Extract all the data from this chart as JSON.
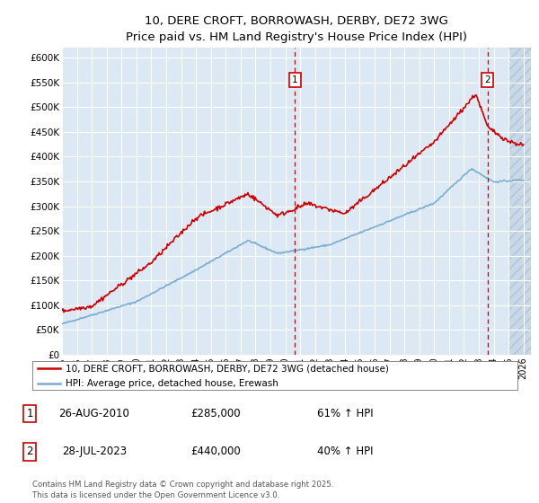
{
  "title": "10, DERE CROFT, BORROWASH, DERBY, DE72 3WG",
  "subtitle": "Price paid vs. HM Land Registry's House Price Index (HPI)",
  "ylim": [
    0,
    620000
  ],
  "xlim_start": 1995.0,
  "xlim_end": 2026.5,
  "plot_bg": "#dce9f5",
  "hatch_color": "#c0d0e0",
  "grid_color": "#ffffff",
  "legend_label_red": "10, DERE CROFT, BORROWASH, DERBY, DE72 3WG (detached house)",
  "legend_label_blue": "HPI: Average price, detached house, Erewash",
  "ann1_x": 2010.65,
  "ann2_x": 2023.58,
  "ann1_date": "26-AUG-2010",
  "ann1_price": "£285,000",
  "ann1_hpi": "61% ↑ HPI",
  "ann2_date": "28-JUL-2023",
  "ann2_price": "£440,000",
  "ann2_hpi": "40% ↑ HPI",
  "footer": "Contains HM Land Registry data © Crown copyright and database right 2025.\nThis data is licensed under the Open Government Licence v3.0.",
  "red_color": "#cc0000",
  "blue_color": "#7aadcf",
  "tick_vals": [
    0,
    50000,
    100000,
    150000,
    200000,
    250000,
    300000,
    350000,
    400000,
    450000,
    500000,
    550000,
    600000
  ],
  "tick_labels": [
    "£0",
    "£50K",
    "£100K",
    "£150K",
    "£200K",
    "£250K",
    "£300K",
    "£350K",
    "£400K",
    "£450K",
    "£500K",
    "£550K",
    "£600K"
  ]
}
